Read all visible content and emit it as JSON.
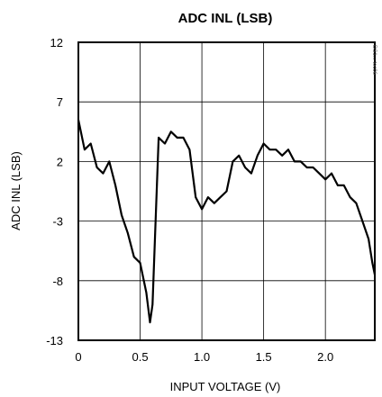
{
  "chart_data": {
    "type": "line",
    "title": "ADC INL (LSB)",
    "xlabel": "INPUT VOLTAGE (V)",
    "ylabel": "ADC INL (LSB)",
    "xlim": [
      0,
      2.4
    ],
    "ylim": [
      -13,
      12
    ],
    "x_ticks": [
      0,
      0.5,
      1.0,
      1.5,
      2.0
    ],
    "x_tick_labels": [
      "0",
      "0.5",
      "1.0",
      "1.5",
      "2.0"
    ],
    "y_ticks": [
      12,
      7,
      2,
      -3,
      -8,
      -13
    ],
    "y_tick_labels": [
      "12",
      "7",
      "2",
      "-3",
      "-8",
      "-13"
    ],
    "grid": true,
    "reference_code": "DS1... toc06",
    "series": [
      {
        "line_color": "#000000",
        "x": [
          0.0,
          0.05,
          0.1,
          0.15,
          0.2,
          0.25,
          0.3,
          0.35,
          0.4,
          0.45,
          0.5,
          0.55,
          0.58,
          0.6,
          0.65,
          0.7,
          0.75,
          0.8,
          0.85,
          0.9,
          0.95,
          1.0,
          1.05,
          1.1,
          1.15,
          1.2,
          1.25,
          1.3,
          1.35,
          1.4,
          1.45,
          1.5,
          1.55,
          1.6,
          1.65,
          1.7,
          1.75,
          1.8,
          1.85,
          1.9,
          1.95,
          2.0,
          2.05,
          2.1,
          2.15,
          2.2,
          2.25,
          2.3,
          2.35,
          2.38,
          2.4
        ],
        "y": [
          5.5,
          3.0,
          3.5,
          1.5,
          1.0,
          2.0,
          0.0,
          -2.5,
          -4.0,
          -6.0,
          -6.5,
          -9.0,
          -11.5,
          -10.0,
          4.0,
          3.5,
          4.5,
          4.0,
          4.0,
          3.0,
          -1.0,
          -2.0,
          -1.0,
          -1.5,
          -1.0,
          -0.5,
          2.0,
          2.5,
          1.5,
          1.0,
          2.5,
          3.5,
          3.0,
          3.0,
          2.5,
          3.0,
          2.0,
          2.0,
          1.5,
          1.5,
          1.0,
          0.5,
          1.0,
          0.0,
          0.0,
          -1.0,
          -1.5,
          -3.0,
          -4.5,
          -6.5,
          -7.5
        ]
      }
    ]
  }
}
